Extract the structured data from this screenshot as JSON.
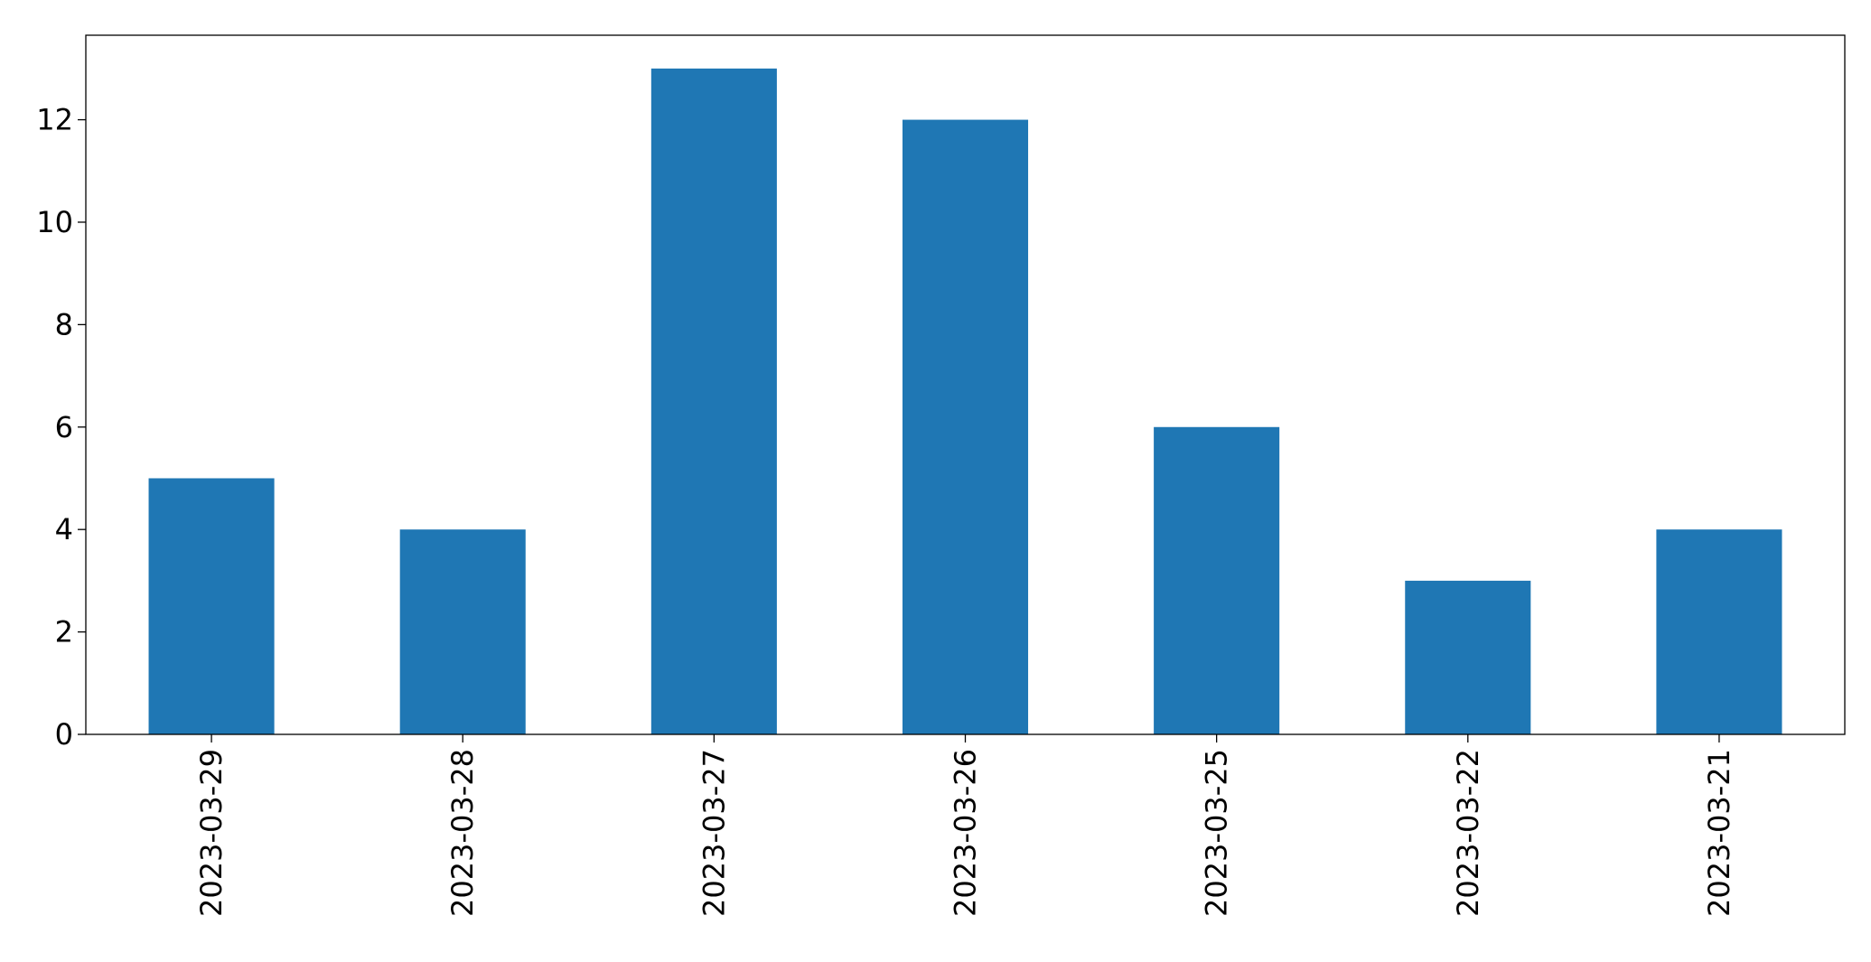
{
  "chart_data": {
    "type": "bar",
    "title": "",
    "xlabel": "",
    "ylabel": "",
    "categories": [
      "2023-03-29",
      "2023-03-28",
      "2023-03-27",
      "2023-03-26",
      "2023-03-25",
      "2023-03-22",
      "2023-03-21"
    ],
    "values": [
      5,
      4,
      13,
      12,
      6,
      3,
      4
    ],
    "ylim": [
      0,
      13.65
    ],
    "yticks": [
      0,
      2,
      4,
      6,
      8,
      10,
      12
    ],
    "grid": false,
    "legend": "none",
    "colors": {
      "bar": "#1f77b4",
      "axis": "#000000",
      "background": "#ffffff"
    }
  }
}
